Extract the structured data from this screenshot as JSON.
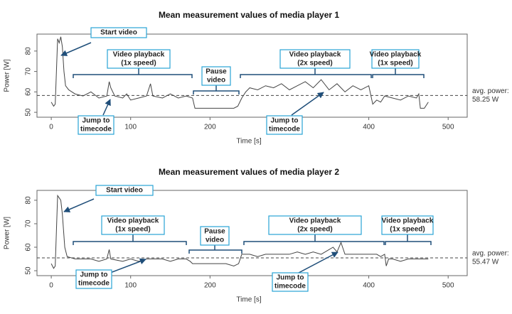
{
  "chart_data": [
    {
      "type": "line",
      "title": "Mean measurement values of media player 1",
      "x_label": "Time [s]",
      "y_label": "Power [W]",
      "color": "#444444",
      "xlim": [
        -18,
        524
      ],
      "ylim": [
        47.6,
        88.3
      ],
      "xticks": [
        0,
        100,
        200,
        300,
        400,
        500
      ],
      "yticks": [
        50,
        60,
        70,
        80
      ],
      "x": [
        0,
        3,
        5,
        8,
        10,
        12,
        14,
        16,
        18,
        22,
        30,
        40,
        50,
        60,
        70,
        73,
        75,
        80,
        90,
        95,
        100,
        110,
        120,
        125,
        128,
        140,
        150,
        160,
        170,
        178,
        181,
        190,
        200,
        210,
        220,
        230,
        235,
        240,
        245,
        250,
        260,
        270,
        280,
        290,
        300,
        310,
        320,
        330,
        340,
        350,
        360,
        370,
        380,
        390,
        400,
        405,
        410,
        415,
        420,
        430,
        440,
        450,
        460,
        463,
        465,
        470,
        475
      ],
      "values": [
        55,
        53,
        54,
        86,
        84,
        87,
        82,
        70,
        63,
        61,
        59,
        58,
        60,
        57,
        58,
        65,
        62,
        58,
        57,
        59,
        56,
        57,
        58,
        64,
        58,
        57,
        59,
        57,
        58,
        57,
        52,
        52,
        52,
        52,
        52,
        52,
        53,
        57,
        60,
        62,
        61,
        63,
        62,
        64,
        61,
        63,
        65,
        62,
        66,
        61,
        64,
        60,
        63,
        61,
        63,
        54,
        56,
        55,
        58,
        57,
        56,
        58,
        57,
        59,
        52,
        52,
        55
      ],
      "avg_caption": "avg. power:",
      "avg_power": {
        "value": 58.25,
        "label": "58.25 W"
      },
      "annotations": [
        {
          "lines": [
            "Start video"
          ]
        },
        {
          "lines": [
            "Video playback",
            "(1x speed)"
          ]
        },
        {
          "lines": [
            "Pause",
            "video"
          ]
        },
        {
          "lines": [
            "Video playback",
            "(2x speed)"
          ]
        },
        {
          "lines": [
            "Video playback",
            "(1x speed)"
          ]
        },
        {
          "lines": [
            "Jump to",
            "timecode"
          ]
        },
        {
          "lines": [
            "Jump to",
            "timecode"
          ]
        }
      ]
    },
    {
      "type": "line",
      "title": "Mean measurement values of media player 2",
      "x_label": "Time [s]",
      "y_label": "Power [W]",
      "color": "#444444",
      "xlim": [
        -18,
        524
      ],
      "ylim": [
        47.9,
        84.2
      ],
      "xticks": [
        0,
        100,
        200,
        300,
        400,
        500
      ],
      "yticks": [
        50,
        60,
        70,
        80
      ],
      "x": [
        0,
        3,
        5,
        8,
        10,
        12,
        14,
        17,
        20,
        30,
        40,
        50,
        60,
        70,
        73,
        75,
        90,
        100,
        110,
        120,
        130,
        140,
        150,
        160,
        170,
        175,
        178,
        190,
        200,
        210,
        220,
        230,
        236,
        240,
        250,
        260,
        270,
        280,
        290,
        300,
        310,
        320,
        330,
        340,
        350,
        355,
        360,
        365,
        370,
        380,
        390,
        400,
        410,
        415,
        420,
        422,
        425,
        430,
        440,
        450,
        460,
        470,
        475
      ],
      "values": [
        53,
        51,
        52,
        82,
        81,
        80,
        74,
        60,
        56,
        55,
        55,
        55,
        54,
        55,
        59,
        55,
        54,
        55,
        54,
        55,
        55,
        55,
        54,
        55,
        55,
        54,
        53,
        53,
        53,
        53,
        53,
        52,
        53,
        57,
        57,
        56,
        57,
        57,
        57,
        57,
        58,
        57,
        58,
        57,
        59,
        60,
        58,
        62,
        57,
        57,
        57,
        57,
        57,
        56,
        57,
        52,
        55,
        55,
        54,
        55,
        55,
        55,
        55
      ],
      "avg_caption": "avg. power:",
      "avg_power": {
        "value": 55.47,
        "label": "55.47 W"
      },
      "annotations": [
        {
          "lines": [
            "Start video"
          ]
        },
        {
          "lines": [
            "Video playback",
            "(1x speed)"
          ]
        },
        {
          "lines": [
            "Pause",
            "video"
          ]
        },
        {
          "lines": [
            "Video playback",
            "(2x speed)"
          ]
        },
        {
          "lines": [
            "Video playback",
            "(1x speed)"
          ]
        },
        {
          "lines": [
            "Jump to",
            "timecode"
          ]
        },
        {
          "lines": [
            "Jump to",
            "timecode"
          ]
        }
      ]
    }
  ]
}
